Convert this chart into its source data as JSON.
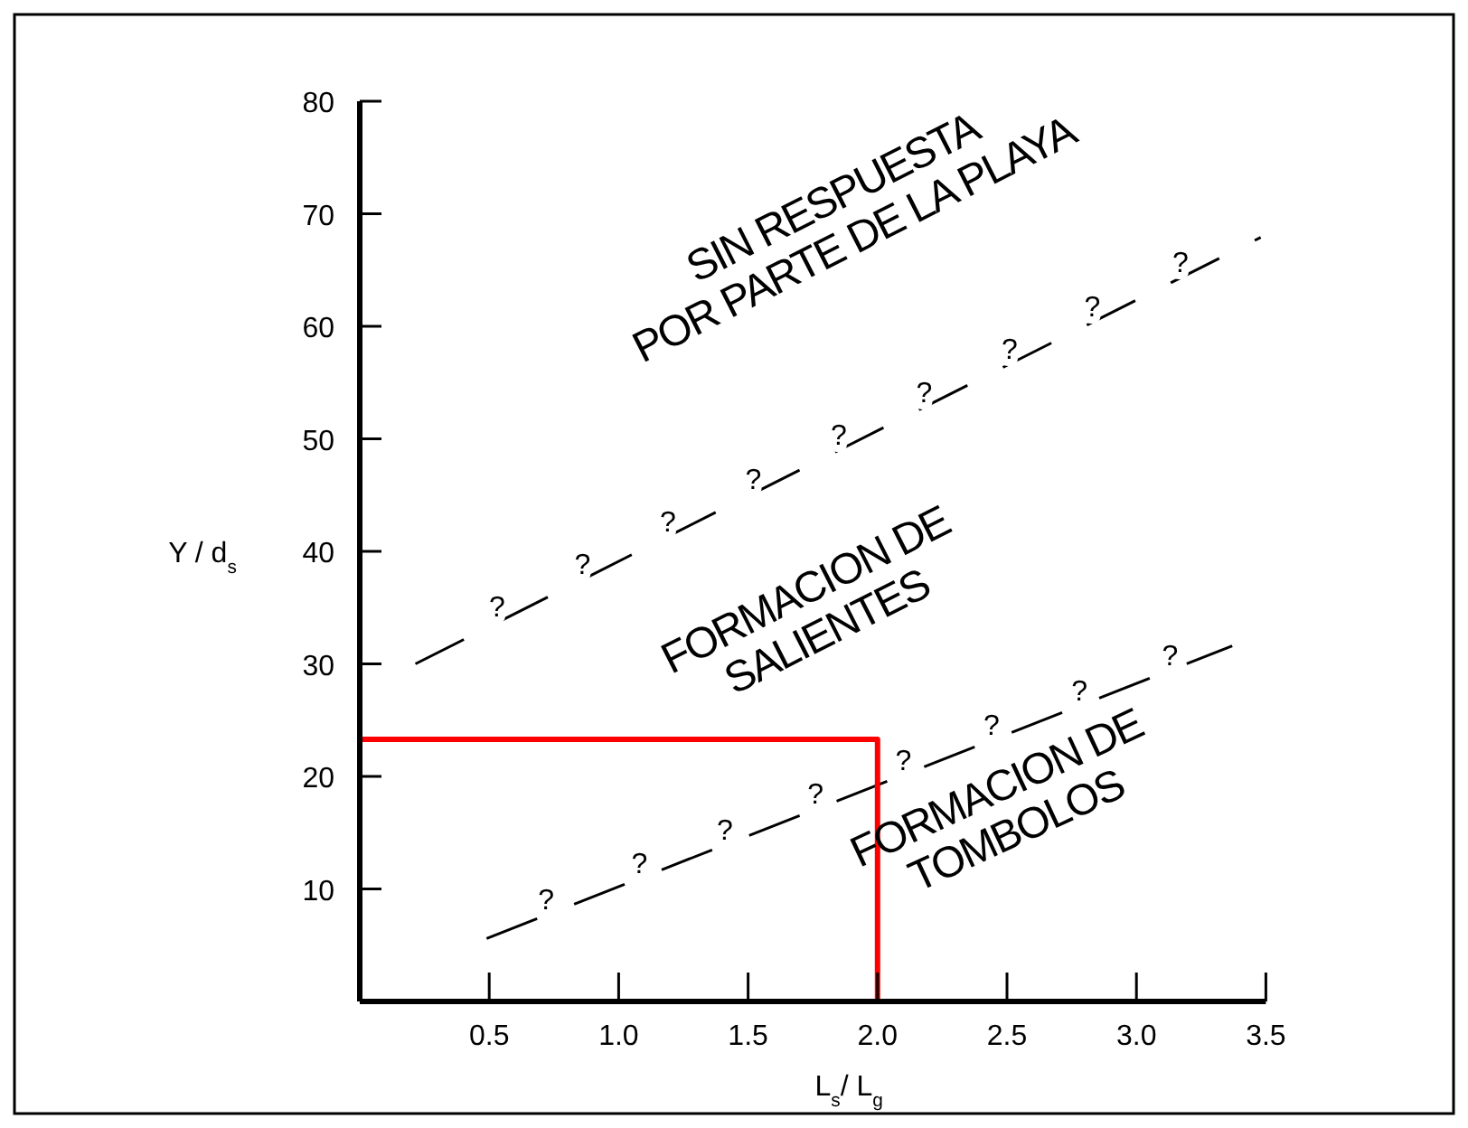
{
  "chart_data": {
    "type": "line",
    "xlabel": "L$_{s}$/ L$_{g}$",
    "ylabel": "Y / d$_{s}$",
    "xlim": [
      0,
      3.5
    ],
    "ylim": [
      0,
      80
    ],
    "xticks": [
      {
        "value": 0.5,
        "label": "0.5"
      },
      {
        "value": 1,
        "label": "1.0"
      },
      {
        "value": 1.5,
        "label": "1.5"
      },
      {
        "value": 2,
        "label": "2.0"
      },
      {
        "value": 2.5,
        "label": "2.5"
      },
      {
        "value": 3,
        "label": "3.0"
      },
      {
        "value": 3.5,
        "label": "3.5"
      }
    ],
    "yticks": [
      10,
      20,
      30,
      40,
      50,
      60,
      70,
      80
    ],
    "grid": false,
    "marker": "none",
    "series": [
      {
        "color": "#000000",
        "line_style": "dashed",
        "x": [
          0.215,
          3.48
        ],
        "values": [
          30,
          67.9
        ]
      },
      {
        "color": "#000000",
        "line_style": "dashed",
        "x": [
          0.49,
          3.37
        ],
        "values": [
          5.6,
          31.6
        ]
      },
      {
        "color": "#ff0000",
        "line_style": "solid",
        "x": [
          0,
          2,
          2
        ],
        "values": [
          23.3,
          23.3,
          0
        ]
      }
    ],
    "annotations": [
      "SIN RESPUESTA\nPOR PARTE DE LA PLAYA",
      "FORMACION DE\nSALIENTES",
      "FORMACION DE\nTOMBOLOS",
      {
        "text": "?",
        "x": 0.53,
        "y": 33.7
      },
      {
        "text": "?",
        "x": 0.86,
        "y": 37.5
      },
      {
        "text": "?",
        "x": 1.19,
        "y": 41.3
      },
      {
        "text": "?",
        "x": 1.52,
        "y": 45.1
      },
      {
        "text": "?",
        "x": 1.85,
        "y": 49.0
      },
      {
        "text": "?",
        "x": 2.18,
        "y": 52.8
      },
      {
        "text": "?",
        "x": 2.51,
        "y": 56.6
      },
      {
        "text": "?",
        "x": 2.83,
        "y": 60.4
      },
      {
        "text": "?",
        "x": 3.17,
        "y": 64.3
      },
      {
        "text": "?",
        "x": 0.72,
        "y": 7.7
      },
      {
        "text": "?",
        "x": 1.08,
        "y": 10.9
      },
      {
        "text": "?",
        "x": 1.41,
        "y": 13.9
      },
      {
        "text": "?",
        "x": 1.76,
        "y": 17.1
      },
      {
        "text": "?",
        "x": 2.1,
        "y": 20.1
      },
      {
        "text": "?",
        "x": 2.44,
        "y": 23.2
      },
      {
        "text": "?",
        "x": 2.78,
        "y": 26.3
      },
      {
        "text": "?",
        "x": 3.13,
        "y": 29.4
      }
    ]
  }
}
